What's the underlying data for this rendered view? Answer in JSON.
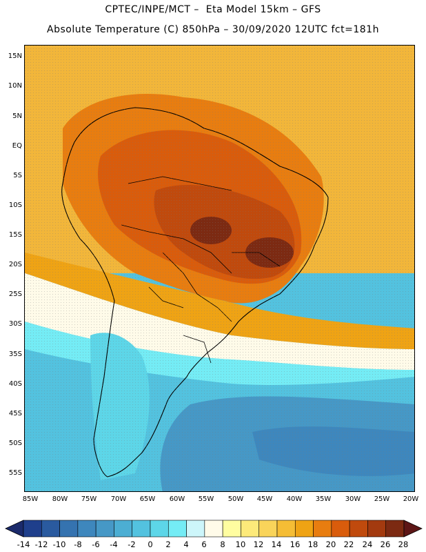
{
  "header": {
    "line1": "CPTEC/INPE/MCT –  Eta Model 15km – GFS",
    "line2": "Absolute Temperature (C) 850hPa – 30/09/2020 12UTC fct=181h"
  },
  "map": {
    "lat_labels": [
      "15N",
      "10N",
      "5N",
      "EQ",
      "5S",
      "10S",
      "15S",
      "20S",
      "25S",
      "30S",
      "35S",
      "40S",
      "45S",
      "50S",
      "55S"
    ],
    "lon_labels": [
      "85W",
      "80W",
      "75W",
      "70W",
      "65W",
      "60W",
      "55W",
      "50W",
      "45W",
      "40W",
      "35W",
      "30W",
      "25W",
      "20W"
    ]
  },
  "colorbar": {
    "labels": [
      "-14",
      "-12",
      "-10",
      "-8",
      "-6",
      "-4",
      "-2",
      "0",
      "2",
      "4",
      "6",
      "8",
      "10",
      "12",
      "14",
      "16",
      "18",
      "20",
      "22",
      "24",
      "26",
      "28"
    ],
    "colors": [
      "#1f3f8c",
      "#2a5a9f",
      "#3573b0",
      "#3e87bd",
      "#4698c6",
      "#4caed3",
      "#53c2df",
      "#5dd6e8",
      "#74ecf5",
      "#cdf6fa",
      "#fffbe9",
      "#fffda0",
      "#fdea7a",
      "#f9d45a",
      "#f5bd35",
      "#efa314",
      "#e87d10",
      "#d95c0c",
      "#c04a0d",
      "#a33a0f",
      "#7c2a12"
    ],
    "low_arrow_color": "#1b2a6b",
    "high_arrow_color": "#5d1616"
  }
}
